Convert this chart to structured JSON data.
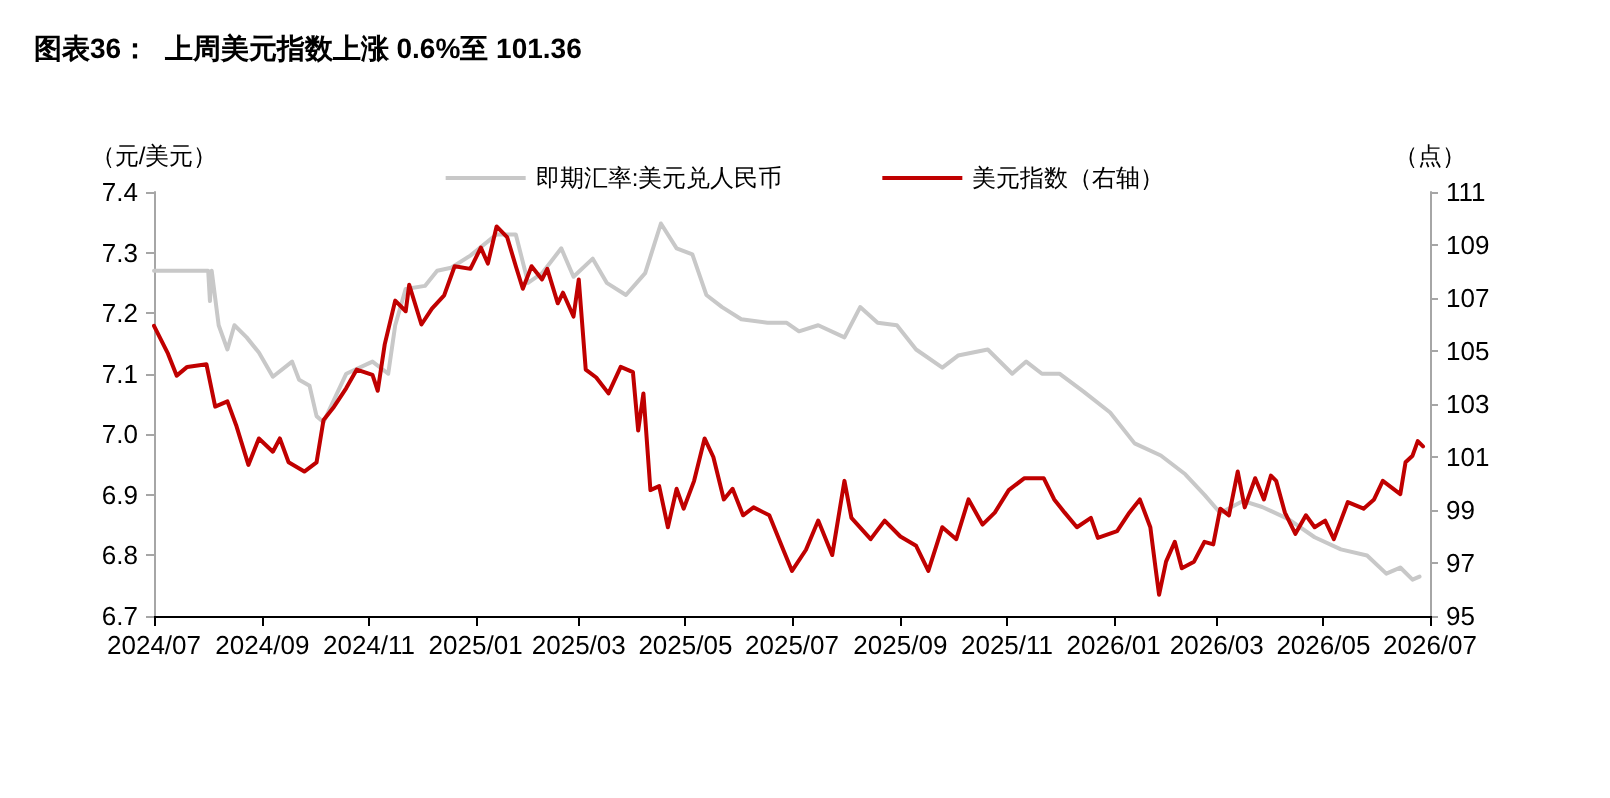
{
  "chart_data": {
    "type": "line",
    "title": "图表36：  上周美元指数上涨 0.6%至 101.36",
    "ylabel": "（元/美元）",
    "y2label": "（点）",
    "xlim": [
      "2024-07-01",
      "2026-07-01"
    ],
    "xticks": [
      {
        "value": "2024-07-01",
        "label": "2024/07"
      },
      {
        "value": "2024-09-01",
        "label": "2024/09"
      },
      {
        "value": "2024-11-01",
        "label": "2024/11"
      },
      {
        "value": "2025-01-01",
        "label": "2025/01"
      },
      {
        "value": "2025-03-01",
        "label": "2025/03"
      },
      {
        "value": "2025-05-01",
        "label": "2025/05"
      },
      {
        "value": "2025-07-01",
        "label": "2025/07"
      },
      {
        "value": "2025-09-01",
        "label": "2025/09"
      },
      {
        "value": "2025-11-01",
        "label": "2025/11"
      },
      {
        "value": "2026-01-01",
        "label": "2026/01"
      },
      {
        "value": "2026-03-01",
        "label": "2026/03"
      },
      {
        "value": "2026-05-01",
        "label": "2026/05"
      },
      {
        "value": "2026-07-01",
        "label": "2026/07"
      }
    ],
    "ylim": [
      6.7,
      7.4
    ],
    "yticks": [
      6.7,
      6.8,
      6.9,
      {
        "value": 7,
        "label": "7.0"
      },
      7.1,
      7.2,
      7.3,
      7.4
    ],
    "y2lim": [
      95,
      111
    ],
    "y2ticks": [
      95,
      97,
      99,
      101,
      103,
      105,
      107,
      109,
      111
    ],
    "grid": false,
    "legend": "top",
    "marker": "none",
    "line_style": "solid",
    "series": [
      {
        "name": "即期汇率:美元兑人民币",
        "color": "#c8c8c8",
        "x": [
          "2024-07-01",
          "2024-08-01",
          "2024-08-02",
          "2024-08-03",
          "2024-08-07",
          "2024-08-12",
          "2024-08-16",
          "2024-08-23",
          "2024-08-30",
          "2024-09-07",
          "2024-09-18",
          "2024-09-22",
          "2024-09-28",
          "2024-10-02",
          "2024-10-06",
          "2024-10-19",
          "2024-11-03",
          "2024-11-12",
          "2024-11-16",
          "2024-11-22",
          "2024-12-03",
          "2024-12-10",
          "2024-12-18",
          "2024-12-29",
          "2025-01-13",
          "2025-01-24",
          "2025-01-31",
          "2025-02-08",
          "2025-02-19",
          "2025-02-26",
          "2025-03-09",
          "2025-03-17",
          "2025-03-28",
          "2025-04-08",
          "2025-04-17",
          "2025-04-26",
          "2025-05-05",
          "2025-05-13",
          "2025-05-22",
          "2025-06-02",
          "2025-06-17",
          "2025-06-28",
          "2025-07-05",
          "2025-07-16",
          "2025-07-31",
          "2025-08-09",
          "2025-08-19",
          "2025-08-30",
          "2025-09-10",
          "2025-09-25",
          "2025-10-04",
          "2025-10-21",
          "2025-11-04",
          "2025-11-12",
          "2025-11-21",
          "2025-12-01",
          "2025-12-15",
          "2025-12-30",
          "2026-01-13",
          "2026-01-28",
          "2026-02-11",
          "2026-02-22",
          "2026-03-03",
          "2026-03-16",
          "2026-03-27",
          "2026-04-11",
          "2026-04-26",
          "2026-05-11",
          "2026-05-26",
          "2026-06-06",
          "2026-06-14",
          "2026-06-21",
          "2026-06-25"
        ],
        "values": [
          7.27,
          7.27,
          7.22,
          7.27,
          7.18,
          7.14,
          7.18,
          7.16,
          7.135,
          7.095,
          7.12,
          7.09,
          7.08,
          7.03,
          7.02,
          7.1,
          7.12,
          7.1,
          7.18,
          7.24,
          7.245,
          7.27,
          7.275,
          7.295,
          7.33,
          7.33,
          7.25,
          7.266,
          7.307,
          7.26,
          7.29,
          7.25,
          7.23,
          7.266,
          7.348,
          7.307,
          7.297,
          7.23,
          7.21,
          7.19,
          7.184,
          7.184,
          7.17,
          7.18,
          7.16,
          7.21,
          7.184,
          7.18,
          7.14,
          7.11,
          7.13,
          7.14,
          7.1,
          7.12,
          7.1,
          7.1,
          7.07,
          7.036,
          6.985,
          6.965,
          6.934,
          6.9,
          6.87,
          6.89,
          6.88,
          6.86,
          6.83,
          6.81,
          6.8,
          6.77,
          6.78,
          6.76,
          6.765
        ]
      },
      {
        "name": "美元指数（右轴）",
        "color": "#c00000",
        "axis": "y2",
        "x": [
          "2024-07-01",
          "2024-07-09",
          "2024-07-14",
          "2024-07-20",
          "2024-07-31",
          "2024-08-05",
          "2024-08-12",
          "2024-08-17",
          "2024-08-24",
          "2024-08-30",
          "2024-09-07",
          "2024-09-11",
          "2024-09-16",
          "2024-09-25",
          "2024-10-02",
          "2024-10-06",
          "2024-10-12",
          "2024-10-19",
          "2024-10-25",
          "2024-11-03",
          "2024-11-06",
          "2024-11-10",
          "2024-11-16",
          "2024-11-22",
          "2024-11-24",
          "2024-12-01",
          "2024-12-07",
          "2024-12-14",
          "2024-12-20",
          "2024-12-29",
          "2025-01-04",
          "2025-01-08",
          "2025-01-13",
          "2025-01-19",
          "2025-01-24",
          "2025-01-28",
          "2025-02-02",
          "2025-02-08",
          "2025-02-11",
          "2025-02-17",
          "2025-02-20",
          "2025-02-26",
          "2025-03-01",
          "2025-03-05",
          "2025-03-11",
          "2025-03-18",
          "2025-03-25",
          "2025-04-01",
          "2025-04-04",
          "2025-04-07",
          "2025-04-11",
          "2025-04-16",
          "2025-04-21",
          "2025-04-26",
          "2025-04-30",
          "2025-05-06",
          "2025-05-12",
          "2025-05-17",
          "2025-05-23",
          "2025-05-28",
          "2025-06-03",
          "2025-06-09",
          "2025-06-18",
          "2025-06-26",
          "2025-07-01",
          "2025-07-09",
          "2025-07-16",
          "2025-07-24",
          "2025-07-31",
          "2025-08-04",
          "2025-08-15",
          "2025-08-23",
          "2025-09-01",
          "2025-09-10",
          "2025-09-17",
          "2025-09-25",
          "2025-10-03",
          "2025-10-10",
          "2025-10-18",
          "2025-10-25",
          "2025-11-02",
          "2025-11-11",
          "2025-11-22",
          "2025-11-28",
          "2025-12-04",
          "2025-12-11",
          "2025-12-19",
          "2025-12-23",
          "2026-01-03",
          "2026-01-10",
          "2026-01-16",
          "2026-01-22",
          "2026-01-25",
          "2026-01-27",
          "2026-01-31",
          "2026-02-05",
          "2026-02-09",
          "2026-02-16",
          "2026-02-22",
          "2026-02-27",
          "2026-03-03",
          "2026-03-08",
          "2026-03-13",
          "2026-03-17",
          "2026-03-23",
          "2026-03-28",
          "2026-04-01",
          "2026-04-04",
          "2026-04-09",
          "2026-04-15",
          "2026-04-21",
          "2026-04-26",
          "2026-05-02",
          "2026-05-07",
          "2026-05-15",
          "2026-05-24",
          "2026-05-30",
          "2026-06-04",
          "2026-06-14",
          "2026-06-17",
          "2026-06-21",
          "2026-06-24",
          "2026-06-27"
        ],
        "values": [
          105.95,
          104.9,
          104.07,
          104.4,
          104.5,
          102.9,
          103.1,
          102.2,
          100.7,
          101.7,
          101.2,
          101.7,
          100.8,
          100.45,
          100.8,
          102.4,
          102.9,
          103.6,
          104.3,
          104.1,
          103.5,
          105.25,
          106.9,
          106.5,
          107.5,
          106,
          106.6,
          107.1,
          108.2,
          108.1,
          108.9,
          108.3,
          109.7,
          109.3,
          108.2,
          107.35,
          108.2,
          107.7,
          108.1,
          106.8,
          107.2,
          106.3,
          107.7,
          104.3,
          104,
          103.4,
          104.4,
          104.2,
          102,
          103.4,
          99.75,
          99.9,
          98.35,
          99.8,
          99.05,
          100.1,
          101.7,
          101,
          99.4,
          99.8,
          98.8,
          99.1,
          98.8,
          97.5,
          96.7,
          97.5,
          98.6,
          97.3,
          100.1,
          98.7,
          97.9,
          98.6,
          98,
          97.65,
          96.7,
          98.35,
          97.9,
          99.4,
          98.45,
          98.9,
          99.75,
          100.2,
          100.2,
          99.4,
          98.9,
          98.35,
          98.7,
          97.95,
          98.2,
          98.9,
          99.4,
          98.35,
          96.8,
          95.8,
          97.05,
          97.8,
          96.8,
          97.05,
          97.8,
          97.7,
          99.05,
          98.8,
          100.45,
          99.1,
          100.2,
          99.4,
          100.3,
          100.1,
          98.9,
          98.1,
          98.8,
          98.35,
          98.6,
          97.9,
          99.3,
          99.05,
          99.4,
          100.1,
          99.6,
          100.8,
          101.05,
          101.6,
          101.4
        ]
      }
    ]
  }
}
